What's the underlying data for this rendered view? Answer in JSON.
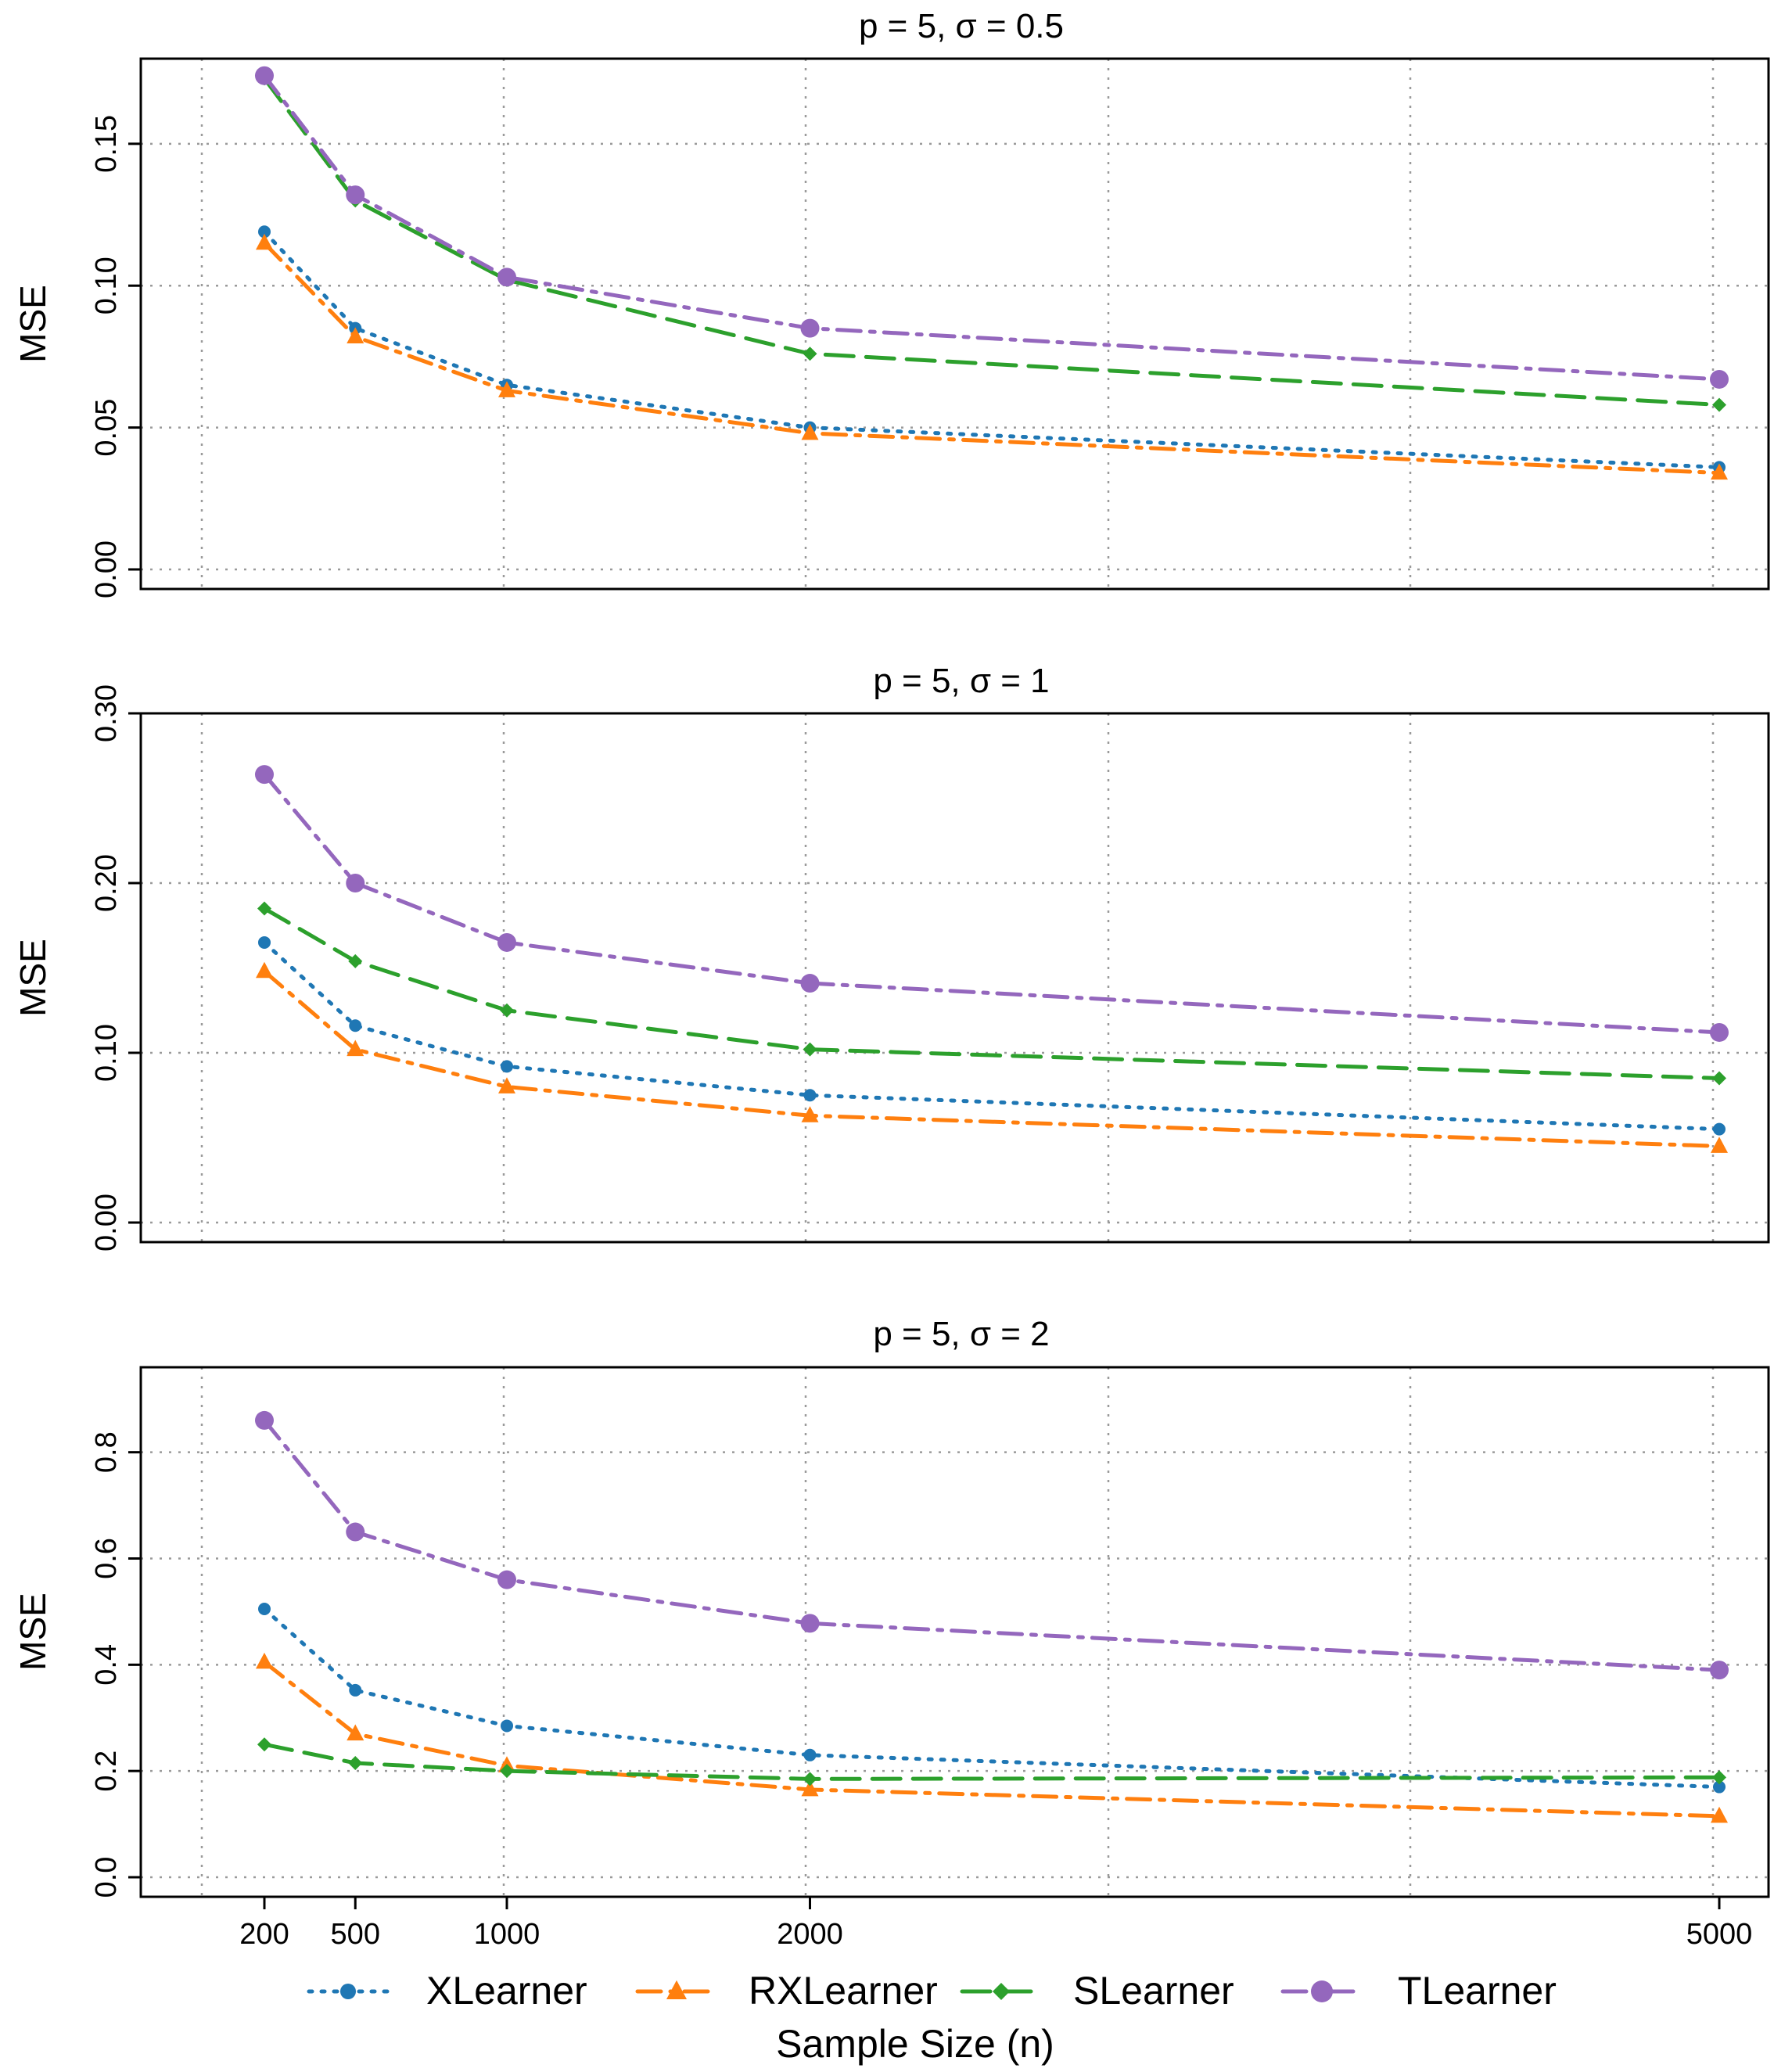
{
  "chart_data": [
    {
      "type": "line",
      "title": "p = 5, σ = 0.5",
      "xlabel": "",
      "ylabel": "MSE",
      "x": [
        200,
        500,
        1000,
        2000,
        5000
      ],
      "xlim": [
        0,
        5000
      ],
      "ylim": [
        0,
        0.18
      ],
      "yticks": [
        0.0,
        0.05,
        0.1,
        0.15
      ],
      "ytick_labels": [
        "0.00",
        "0.05",
        "0.10",
        "0.15"
      ],
      "grid": true,
      "series": [
        {
          "name": "XLearner",
          "values": [
            0.119,
            0.085,
            0.065,
            0.05,
            0.036
          ]
        },
        {
          "name": "RXLearner",
          "values": [
            0.115,
            0.082,
            0.063,
            0.048,
            0.034
          ]
        },
        {
          "name": "SLearner",
          "values": [
            0.173,
            0.13,
            0.102,
            0.076,
            0.058
          ]
        },
        {
          "name": "TLearner",
          "values": [
            0.174,
            0.132,
            0.103,
            0.085,
            0.067
          ]
        }
      ]
    },
    {
      "type": "line",
      "title": "p = 5, σ = 1",
      "xlabel": "",
      "ylabel": "MSE",
      "x": [
        200,
        500,
        1000,
        2000,
        5000
      ],
      "xlim": [
        0,
        5000
      ],
      "ylim": [
        0,
        0.3
      ],
      "yticks": [
        0.0,
        0.1,
        0.2,
        0.3
      ],
      "ytick_labels": [
        "0.00",
        "0.10",
        "0.20",
        "0.30"
      ],
      "grid": true,
      "series": [
        {
          "name": "XLearner",
          "values": [
            0.165,
            0.116,
            0.092,
            0.075,
            0.055
          ]
        },
        {
          "name": "RXLearner",
          "values": [
            0.148,
            0.102,
            0.08,
            0.063,
            0.045
          ]
        },
        {
          "name": "SLearner",
          "values": [
            0.185,
            0.154,
            0.125,
            0.102,
            0.085
          ]
        },
        {
          "name": "TLearner",
          "values": [
            0.264,
            0.2,
            0.165,
            0.141,
            0.112
          ]
        }
      ]
    },
    {
      "type": "line",
      "title": "p = 5, σ = 2",
      "xlabel": "Sample Size (n)",
      "ylabel": "MSE",
      "x": [
        200,
        500,
        1000,
        2000,
        5000
      ],
      "xlim": [
        0,
        5000
      ],
      "ylim": [
        0,
        0.96
      ],
      "yticks": [
        0.0,
        0.2,
        0.4,
        0.6,
        0.8
      ],
      "ytick_labels": [
        "0.0",
        "0.2",
        "0.4",
        "0.6",
        "0.8"
      ],
      "xticks": [
        200,
        500,
        1000,
        2000,
        5000
      ],
      "xtick_labels": [
        "200",
        "500",
        "1000",
        "2000",
        "5000"
      ],
      "grid": true,
      "series": [
        {
          "name": "XLearner",
          "values": [
            0.505,
            0.352,
            0.285,
            0.23,
            0.17
          ]
        },
        {
          "name": "RXLearner",
          "values": [
            0.405,
            0.27,
            0.21,
            0.165,
            0.115
          ]
        },
        {
          "name": "SLearner",
          "values": [
            0.25,
            0.215,
            0.2,
            0.185,
            0.188
          ]
        },
        {
          "name": "TLearner",
          "values": [
            0.86,
            0.65,
            0.56,
            0.478,
            0.39
          ]
        }
      ]
    }
  ],
  "legend": {
    "placement": "bottom",
    "items": [
      {
        "name": "XLearner",
        "label": "XLearner",
        "color": "#1f77b4",
        "marker": "circle"
      },
      {
        "name": "RXLearner",
        "label": "RXLearner",
        "color": "#ff7f0e",
        "marker": "triangle"
      },
      {
        "name": "SLearner",
        "label": "SLearner",
        "color": "#2ca02c",
        "marker": "diamond"
      },
      {
        "name": "TLearner",
        "label": "TLearner",
        "color": "#9467bd",
        "marker": "circle-large"
      }
    ]
  }
}
